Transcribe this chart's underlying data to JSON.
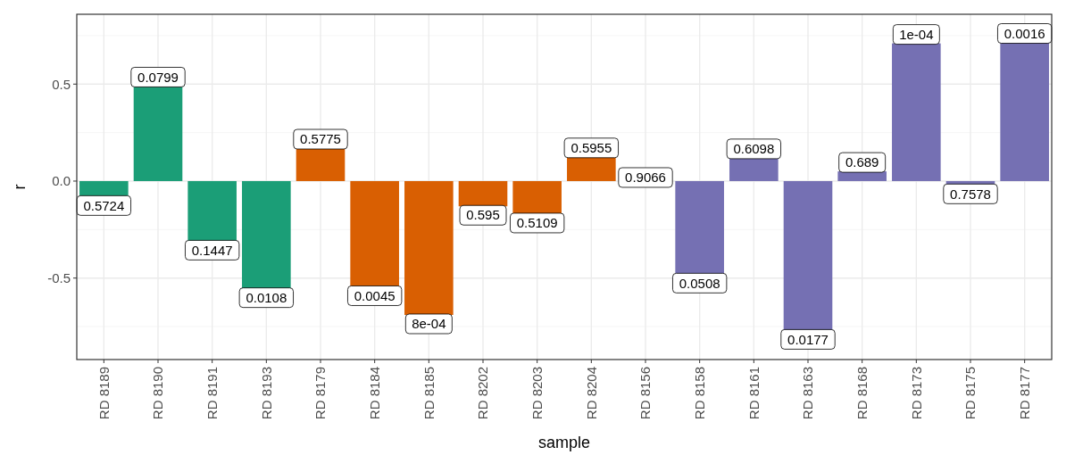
{
  "chart_data": {
    "type": "bar",
    "xlabel": "sample",
    "ylabel": "r",
    "categories": [
      "RD 8189",
      "RD 8190",
      "RD 8191",
      "RD 8193",
      "RD 8179",
      "RD 8184",
      "RD 8185",
      "RD 8202",
      "RD 8203",
      "RD 8204",
      "RD 8156",
      "RD 8158",
      "RD 8161",
      "RD 8163",
      "RD 8168",
      "RD 8173",
      "RD 8175",
      "RD 8177"
    ],
    "values": [
      -0.08,
      0.49,
      -0.31,
      -0.555,
      0.17,
      -0.545,
      -0.69,
      -0.13,
      -0.17,
      0.125,
      0.0,
      -0.48,
      0.12,
      -0.77,
      0.05,
      0.71,
      -0.02,
      0.715
    ],
    "colors": [
      "#1b9e77",
      "#1b9e77",
      "#1b9e77",
      "#1b9e77",
      "#d95f02",
      "#d95f02",
      "#d95f02",
      "#d95f02",
      "#d95f02",
      "#d95f02",
      "#d95f02",
      "#7570b3",
      "#7570b3",
      "#7570b3",
      "#7570b3",
      "#7570b3",
      "#7570b3",
      "#7570b3"
    ],
    "annotations": [
      {
        "text": "0.5724",
        "x": "RD 8189",
        "y": -0.08
      },
      {
        "text": "0.0799",
        "x": "RD 8190",
        "y": 0.49
      },
      {
        "text": "0.1447",
        "x": "RD 8191",
        "y": -0.31
      },
      {
        "text": "0.0108",
        "x": "RD 8193",
        "y": -0.555
      },
      {
        "text": "0.5775",
        "x": "RD 8179",
        "y": 0.17
      },
      {
        "text": "0.0045",
        "x": "RD 8184",
        "y": -0.545
      },
      {
        "text": "8e-04",
        "x": "RD 8185",
        "y": -0.69
      },
      {
        "text": "0.595",
        "x": "RD 8202",
        "y": -0.13
      },
      {
        "text": "0.5109",
        "x": "RD 8203",
        "y": -0.17
      },
      {
        "text": "0.5955",
        "x": "RD 8204",
        "y": 0.125
      },
      {
        "text": "0.9066",
        "x": "RD 8156",
        "y": 0.0
      },
      {
        "text": "0.0508",
        "x": "RD 8158",
        "y": -0.48
      },
      {
        "text": "0.6098",
        "x": "RD 8161",
        "y": 0.12
      },
      {
        "text": "0.0177",
        "x": "RD 8163",
        "y": -0.77
      },
      {
        "text": "0.689",
        "x": "RD 8168",
        "y": 0.05
      },
      {
        "text": "1e-04",
        "x": "RD 8173",
        "y": 0.71
      },
      {
        "text": "0.7578",
        "x": "RD 8175",
        "y": -0.02
      },
      {
        "text": "0.0016",
        "x": "RD 8177",
        "y": 0.715
      }
    ],
    "ylim": [
      -0.92,
      0.86
    ],
    "yticks": [
      {
        "value": -0.5,
        "label": "-0.5"
      },
      {
        "value": 0,
        "label": "0.0"
      },
      {
        "value": 0.5,
        "label": "0.5"
      }
    ],
    "grid": true
  }
}
